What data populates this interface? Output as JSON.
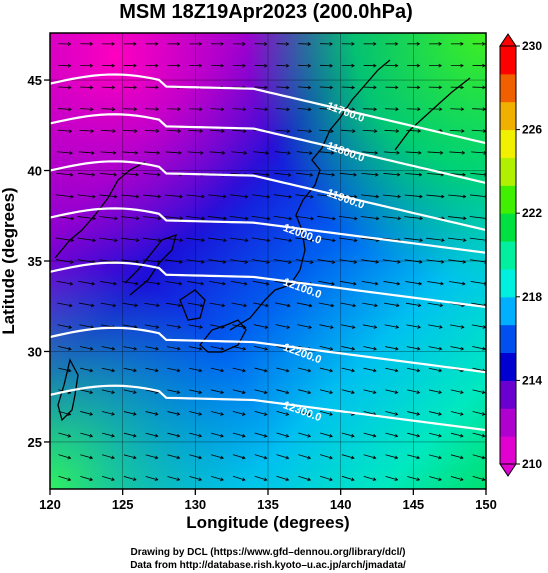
{
  "title": "MSM 18Z19Apr2023 (200.0hPa)",
  "x_axis": {
    "label": "Longitude (degrees)",
    "ticks": [
      "120",
      "125",
      "130",
      "135",
      "140",
      "145",
      "150"
    ],
    "range": [
      120,
      150
    ]
  },
  "y_axis": {
    "label": "Latitude  (degrees)",
    "ticks": [
      "25",
      "30",
      "35",
      "40",
      "45"
    ],
    "range": [
      22.4,
      47.6
    ]
  },
  "colorbar": {
    "ticks": [
      "210",
      "214",
      "218",
      "222",
      "226",
      "230"
    ],
    "range": [
      210,
      230
    ],
    "colors": [
      "#e000d0",
      "#b000d0",
      "#6a00d0",
      "#0000d0",
      "#0050f0",
      "#00b0ff",
      "#00f0e0",
      "#00f0a0",
      "#00e040",
      "#40f000",
      "#b0f000",
      "#f0f000",
      "#f0b000",
      "#f06000",
      "#ff0000"
    ]
  },
  "contours": [
    {
      "label": "11700.0",
      "lat": 43.6
    },
    {
      "label": "11800.0",
      "lat": 41.4
    },
    {
      "label": "11900.0",
      "lat": 38.8
    },
    {
      "label": "12000.0",
      "lat": 36.2
    },
    {
      "label": "12100.0",
      "lat": 33.2
    },
    {
      "label": "12200.0",
      "lat": 29.6
    },
    {
      "label": "12300.0",
      "lat": 26.4
    }
  ],
  "footer": {
    "line1": "Drawing by DCL (https://www.gfd–dennou.org/library/dcl/)",
    "line2": "Data from http://database.rish.kyoto–u.ac.jp/arch/jmadata/"
  }
}
